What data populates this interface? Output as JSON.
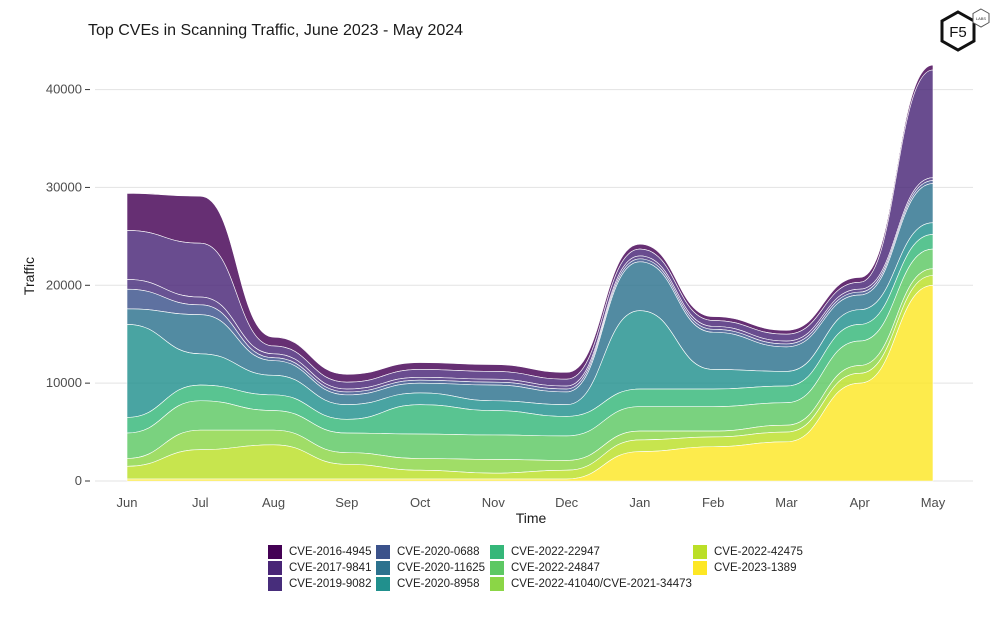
{
  "logo_text": "F5",
  "logo_badge": "LABS",
  "chart_data": {
    "type": "area",
    "subtype": "streamgraph",
    "title": "Top CVEs in Scanning Traffic, June 2023 - May 2024",
    "xlabel": "Time",
    "ylabel": "Traffic",
    "x": [
      "Jun",
      "Jul",
      "Aug",
      "Sep",
      "Oct",
      "Nov",
      "Dec",
      "Jan",
      "Feb",
      "Mar",
      "Apr",
      "May"
    ],
    "ylim": [
      0,
      42000
    ],
    "yticks": [
      0,
      10000,
      20000,
      30000,
      40000
    ],
    "grid": true,
    "legend_position": "bottom",
    "series": [
      {
        "name": "CVE-2023-1389",
        "color": "#FDE725",
        "values": [
          200,
          200,
          200,
          200,
          200,
          200,
          200,
          3000,
          3500,
          4000,
          10000,
          20000
        ]
      },
      {
        "name": "CVE-2022-42475",
        "color": "#BBDF27",
        "values": [
          1300,
          3000,
          3500,
          1500,
          900,
          600,
          900,
          1200,
          1000,
          1000,
          1000,
          1000
        ]
      },
      {
        "name": "CVE-2022-41040/CVE-2021-34473",
        "color": "#8BD646",
        "values": [
          800,
          2000,
          1500,
          1200,
          1200,
          1400,
          1000,
          900,
          600,
          700,
          800,
          700
        ]
      },
      {
        "name": "CVE-2022-24847",
        "color": "#5DC863",
        "values": [
          2600,
          3000,
          2000,
          2000,
          2500,
          2500,
          2500,
          2500,
          2500,
          2300,
          2500,
          2000
        ]
      },
      {
        "name": "CVE-2022-22947",
        "color": "#35B779",
        "values": [
          1600,
          1600,
          1600,
          1400,
          3000,
          2500,
          2000,
          1800,
          1800,
          1700,
          1700,
          1500
        ]
      },
      {
        "name": "CVE-2020-8958",
        "color": "#21908D",
        "values": [
          9500,
          3200,
          2000,
          1500,
          1200,
          1000,
          1200,
          8000,
          2000,
          1500,
          1500,
          1200
        ]
      },
      {
        "name": "CVE-2020-11625",
        "color": "#2C728E",
        "values": [
          1600,
          4000,
          1500,
          1000,
          1000,
          1600,
          1300,
          5000,
          3800,
          2500,
          1500,
          4000
        ]
      },
      {
        "name": "CVE-2020-0688",
        "color": "#3B528B",
        "values": [
          2000,
          1000,
          300,
          300,
          300,
          300,
          300,
          300,
          300,
          300,
          300,
          300
        ]
      },
      {
        "name": "CVE-2019-9082",
        "color": "#472D7B",
        "values": [
          1000,
          800,
          400,
          300,
          300,
          300,
          300,
          300,
          300,
          300,
          300,
          300
        ]
      },
      {
        "name": "CVE-2017-9841",
        "color": "#482576",
        "values": [
          5000,
          5500,
          800,
          700,
          800,
          800,
          700,
          700,
          600,
          700,
          700,
          11000
        ]
      },
      {
        "name": "CVE-2016-4945",
        "color": "#440154",
        "values": [
          3800,
          4800,
          900,
          800,
          700,
          700,
          700,
          500,
          400,
          400,
          500,
          500
        ]
      }
    ]
  },
  "legend": [
    {
      "label": "CVE-2016-4945",
      "color": "#440154"
    },
    {
      "label": "CVE-2017-9841",
      "color": "#482576"
    },
    {
      "label": "CVE-2019-9082",
      "color": "#472D7B"
    },
    {
      "label": "CVE-2020-0688",
      "color": "#3B528B"
    },
    {
      "label": "CVE-2020-11625",
      "color": "#2C728E"
    },
    {
      "label": "CVE-2020-8958",
      "color": "#21908D"
    },
    {
      "label": "CVE-2022-22947",
      "color": "#35B779"
    },
    {
      "label": "CVE-2022-24847",
      "color": "#5DC863"
    },
    {
      "label": "CVE-2022-41040/CVE-2021-34473",
      "color": "#8BD646"
    },
    {
      "label": "CVE-2022-42475",
      "color": "#BBDF27"
    },
    {
      "label": "CVE-2023-1389",
      "color": "#FDE725"
    }
  ]
}
